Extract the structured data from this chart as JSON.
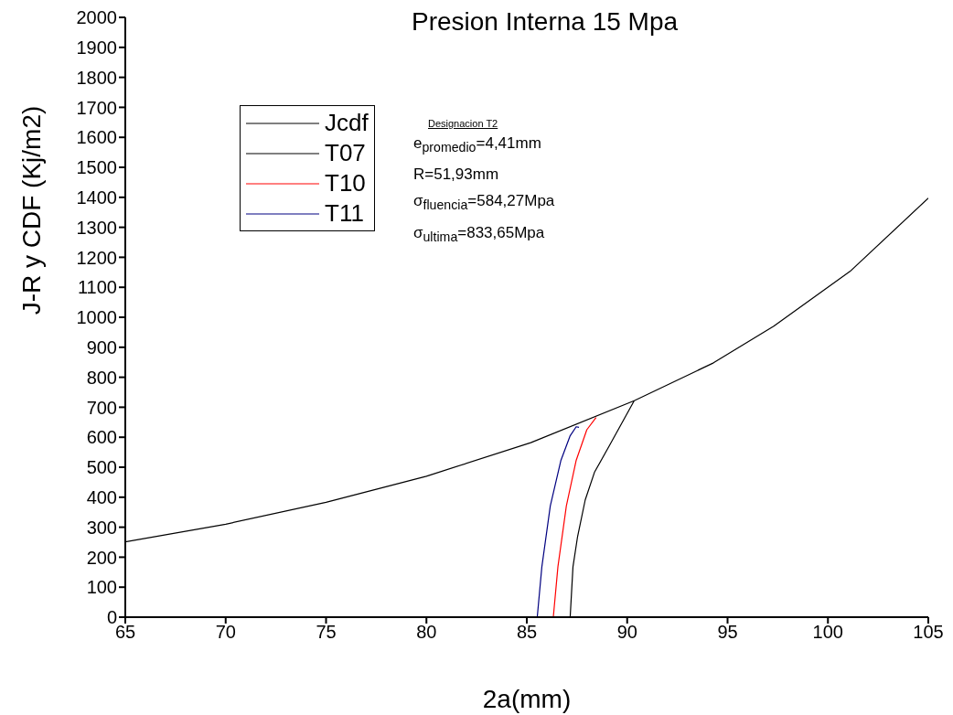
{
  "chart_data": {
    "type": "line",
    "title": "Presion Interna 15 Mpa",
    "xlabel": "2a(mm)",
    "ylabel": "J-R y CDF (Kj/m2)",
    "annotations": [
      "Designacion T2",
      "e$_{promedio}$=4,41mm",
      "R=51,93mm",
      "σ$_{fluencia}$=584,27Mpa",
      "σ$_{ultima}$=833,65Mpa"
    ],
    "series": [
      {
        "name": "Jcdf",
        "color": "#000000",
        "x": [
          65,
          70,
          75,
          80,
          85.2,
          90.35,
          94.3,
          97.3,
          101.1,
          105
        ],
        "values": [
          251,
          310,
          383,
          470,
          582,
          722,
          848,
          970,
          1153,
          1397
        ]
      },
      {
        "name": "T07",
        "color": "#000000",
        "x": [
          87.16,
          87.3,
          87.53,
          87.91,
          88.37,
          89.13,
          90.35
        ],
        "values": [
          0,
          168,
          269,
          391,
          483,
          574,
          722
        ]
      },
      {
        "name": "T10",
        "color": "#ff0000",
        "x": [
          86.32,
          86.55,
          86.97,
          87.46,
          87.99,
          88.45
        ],
        "values": [
          0,
          168,
          371,
          523,
          625,
          666
        ]
      },
      {
        "name": "T11",
        "color": "#000080",
        "x": [
          85.52,
          85.75,
          86.17,
          86.7,
          87.16,
          87.46,
          87.6
        ],
        "values": [
          0,
          168,
          371,
          523,
          605,
          635,
          633
        ]
      }
    ],
    "xlim": [
      65,
      105
    ],
    "xticks": [
      65,
      70,
      75,
      80,
      85,
      90,
      95,
      100,
      105
    ],
    "ylim": [
      0,
      2000
    ],
    "yticks": [
      0,
      100,
      200,
      300,
      400,
      500,
      600,
      700,
      800,
      900,
      1000,
      1100,
      1200,
      1300,
      1400,
      1500,
      1600,
      1700,
      1800,
      1900,
      2000
    ],
    "grid": false,
    "legend": "top left",
    "marker": "none",
    "line_style": "solid"
  }
}
